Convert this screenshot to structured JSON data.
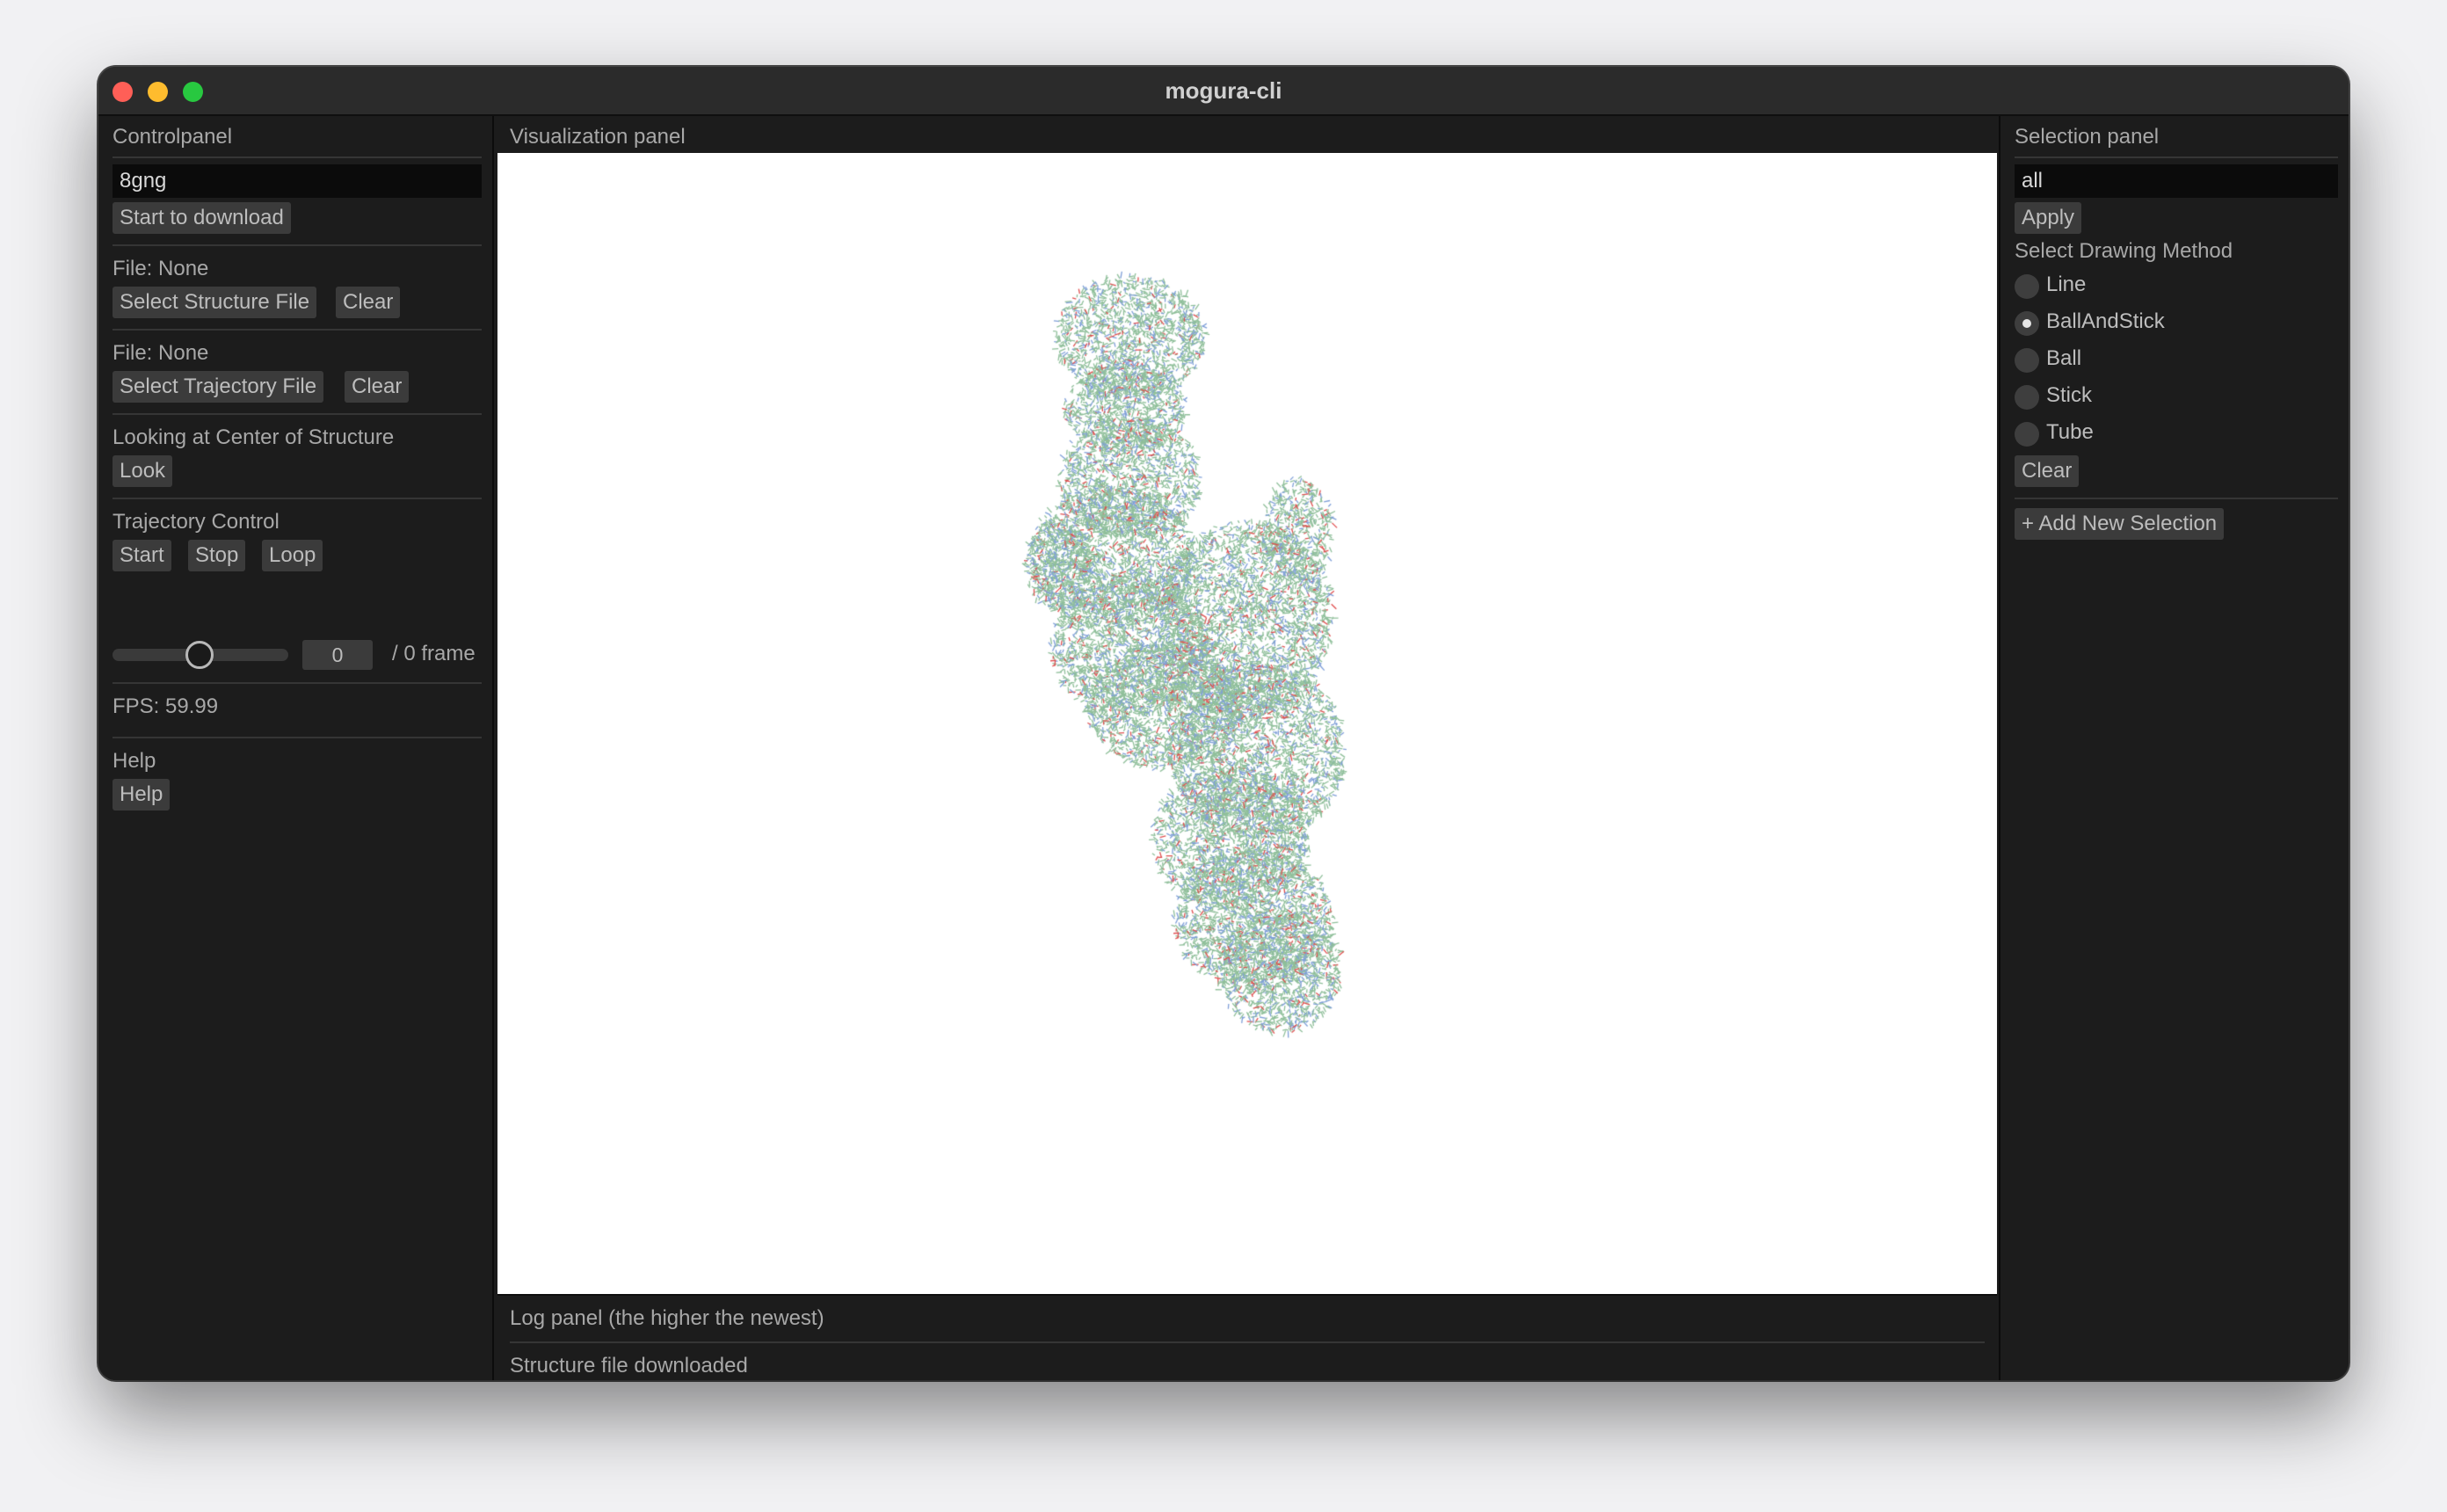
{
  "window": {
    "title": "mogura-cli"
  },
  "control_panel": {
    "title": "Controlpanel",
    "pdb_input_value": "8gng",
    "download_button": "Start to download",
    "structure_file": {
      "label": "File: None",
      "select_button": "Select Structure File",
      "clear_button": "Clear"
    },
    "trajectory_file": {
      "label": "File: None",
      "select_button": "Select Trajectory File",
      "clear_button": "Clear"
    },
    "look": {
      "label": "Looking at Center of Structure",
      "button": "Look"
    },
    "trajectory_control": {
      "label": "Trajectory Control",
      "start_button": "Start",
      "stop_button": "Stop",
      "loop_button": "Loop",
      "slider_level": 0.5,
      "frame_value": "0",
      "frame_total": "/ 0 frame"
    },
    "fps": "FPS: 59.99",
    "help": {
      "label": "Help",
      "button": "Help"
    }
  },
  "visualization_panel": {
    "title": "Visualization panel",
    "background_color": "#ffffff"
  },
  "log_panel": {
    "title": "Log panel (the higher the newest)",
    "entries": [
      "Structure file downloaded"
    ]
  },
  "selection_panel": {
    "title": "Selection panel",
    "selection_input_value": "all",
    "apply_button": "Apply",
    "drawing_method_label": "Select Drawing Method",
    "methods": [
      "Line",
      "BallAndStick",
      "Ball",
      "Stick",
      "Tube"
    ],
    "selected_method": "BallAndStick",
    "clear_button": "Clear",
    "add_selection_button": "+ Add New Selection"
  },
  "colors": {
    "bond_green": "#8fbf9a",
    "bond_blue": "#7f9fd8",
    "atom_red": "#e05050",
    "panel_bg": "#1c1c1c"
  }
}
